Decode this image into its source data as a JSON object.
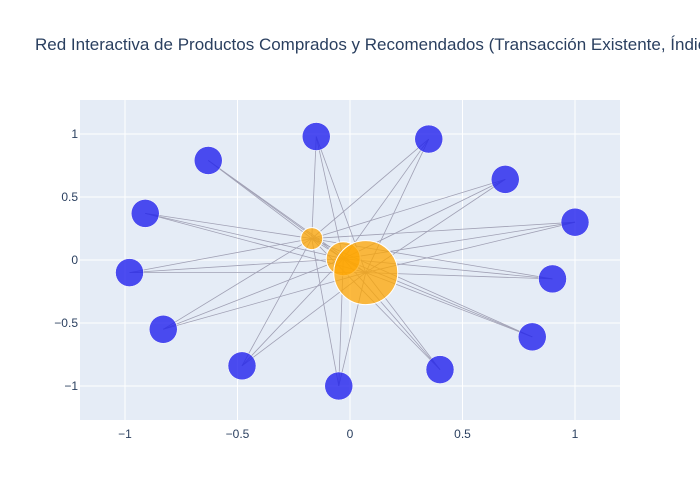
{
  "chart_data": {
    "type": "scatter",
    "title": "Red Interactiva de Productos Comprados y Recomendados (Transacción Existente, Índice",
    "xlabel": "",
    "ylabel": "",
    "xlim": [
      -1.2,
      1.2
    ],
    "ylim": [
      -1.27,
      1.27
    ],
    "x_ticks": [
      -1,
      -0.5,
      0,
      0.5,
      1
    ],
    "y_ticks": [
      1,
      0.5,
      0,
      -0.5,
      -1
    ],
    "x_tick_labels": [
      "−1",
      "−0.5",
      "0",
      "0.5",
      "1"
    ],
    "y_tick_labels": [
      "1",
      "0.5",
      "0",
      "−0.5",
      "−1"
    ],
    "grid": true,
    "legend": "none",
    "colors": {
      "plot_bg": "#e5ecf6",
      "grid": "#ffffff",
      "recommended": "#2222ee",
      "purchased": "#ffa500",
      "edge": "#a0a0b4"
    },
    "purchased_nodes": [
      {
        "x": -0.17,
        "y": 0.17,
        "size": 1
      },
      {
        "x": -0.03,
        "y": 0.01,
        "size": 2
      },
      {
        "x": 0.07,
        "y": -0.1,
        "size": 4
      }
    ],
    "recommended_nodes": [
      {
        "x": -0.15,
        "y": 0.98
      },
      {
        "x": 0.35,
        "y": 0.96
      },
      {
        "x": -0.63,
        "y": 0.79
      },
      {
        "x": 0.69,
        "y": 0.64
      },
      {
        "x": -0.91,
        "y": 0.37
      },
      {
        "x": 1.0,
        "y": 0.3
      },
      {
        "x": -0.98,
        "y": -0.1
      },
      {
        "x": 0.9,
        "y": -0.15
      },
      {
        "x": -0.83,
        "y": -0.55
      },
      {
        "x": 0.81,
        "y": -0.61
      },
      {
        "x": -0.48,
        "y": -0.84
      },
      {
        "x": 0.4,
        "y": -0.87
      },
      {
        "x": -0.05,
        "y": -1.0
      }
    ]
  }
}
